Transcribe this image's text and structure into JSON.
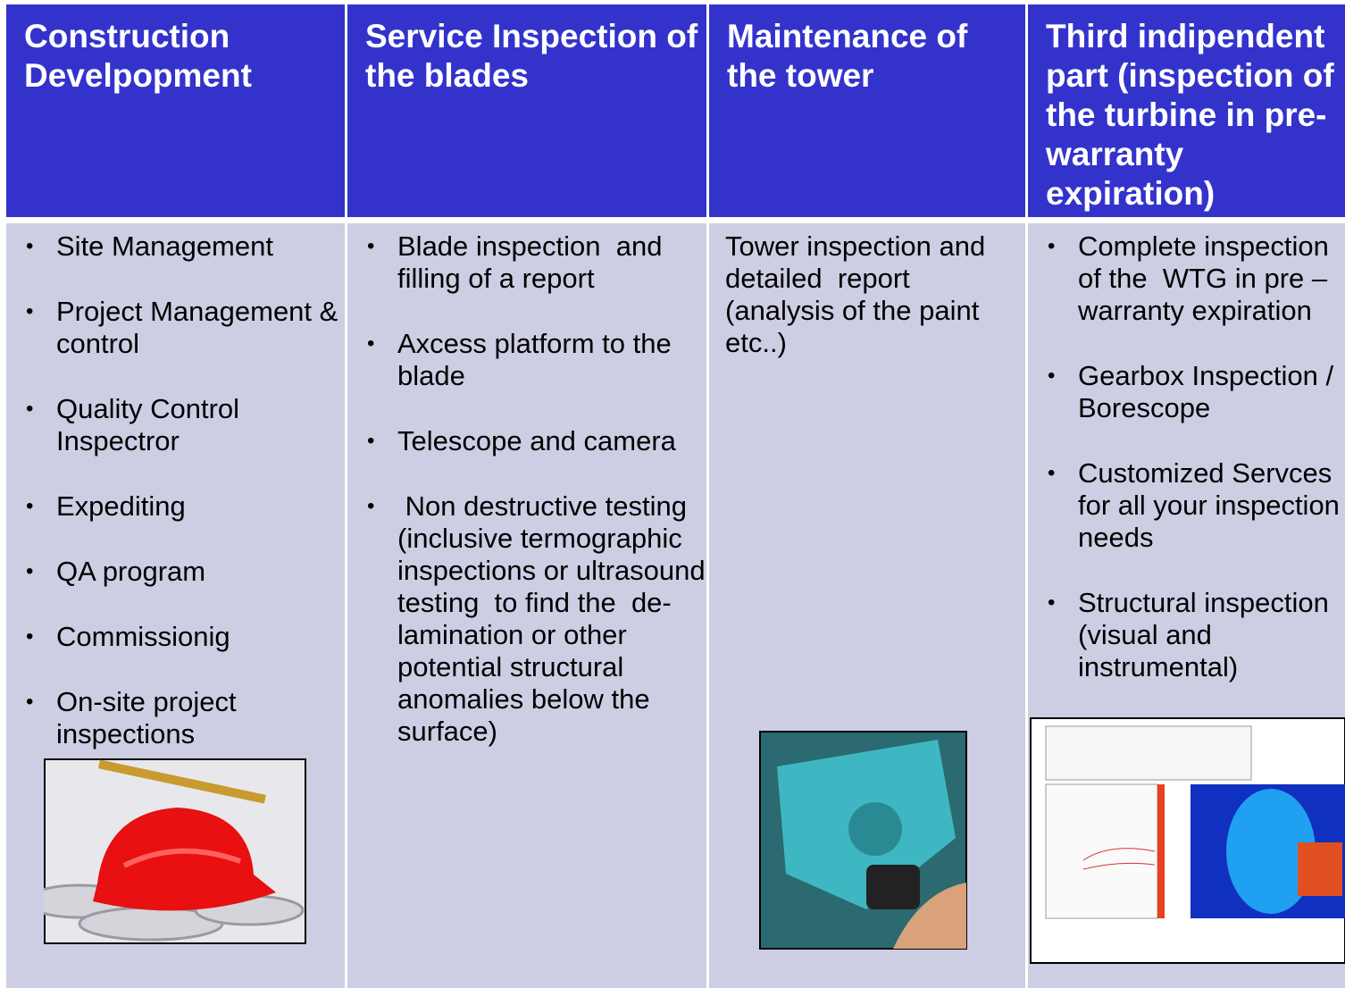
{
  "columns": [
    {
      "header": "Construction Develpopment",
      "items": [
        "Site Management",
        "Project Management & control",
        "Quality Control Inspectror",
        "Expediting",
        "QA program",
        "Commissionig",
        "On-site project inspections"
      ]
    },
    {
      "header": "Service Inspection of the blades",
      "items": [
        "Blade inspection  and filling of a report",
        "Axcess platform to the blade",
        "Telescope and camera",
        " Non destructive testing   (inclusive termographic inspections or ultrasound testing  to find the  de-lamination or other potential structural anomalies below the surface)"
      ]
    },
    {
      "header": "Maintenance of the tower",
      "text": "Tower inspection and detailed  report (analysis of the paint etc..)"
    },
    {
      "header": "Third indipendent part  (inspection of the turbine in pre-warranty expiration)",
      "items": [
        "Complete inspection of the  WTG in pre – warranty expiration",
        "Gearbox Inspection / Borescope",
        "Customized Servces for all your inspection needs",
        "Structural inspection (visual and instrumental)"
      ]
    }
  ]
}
